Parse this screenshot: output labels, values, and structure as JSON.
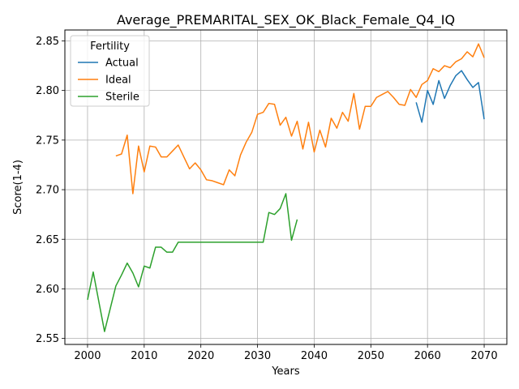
{
  "chart_data": {
    "type": "line",
    "title": "Average_PREMARITAL_SEX_OK_Black_Female_Q4_IQ",
    "xlabel": "Years",
    "ylabel": "Score(1-4)",
    "xlim": [
      1996,
      2074
    ],
    "ylim": [
      2.544,
      2.861
    ],
    "xticks": [
      2000,
      2010,
      2020,
      2030,
      2040,
      2050,
      2060,
      2070
    ],
    "yticks": [
      2.55,
      2.6,
      2.65,
      2.7,
      2.75,
      2.8,
      2.85
    ],
    "xtick_labels": [
      "2000",
      "2010",
      "2020",
      "2030",
      "2040",
      "2050",
      "2060",
      "2070"
    ],
    "ytick_labels": [
      "2.55",
      "2.60",
      "2.65",
      "2.70",
      "2.75",
      "2.80",
      "2.85"
    ],
    "grid": true,
    "legend": {
      "title": "Fertility",
      "placement": "top-left"
    },
    "series": [
      {
        "name": "Actual",
        "color": "#1f77b4",
        "x": [
          2058,
          2059,
          2060,
          2061,
          2062,
          2063,
          2064,
          2065,
          2066,
          2067,
          2068,
          2069,
          2070
        ],
        "y": [
          2.788,
          2.768,
          2.8,
          2.786,
          2.81,
          2.792,
          2.805,
          2.815,
          2.82,
          2.811,
          2.803,
          2.808,
          2.771
        ]
      },
      {
        "name": "Ideal",
        "color": "#ff7f0e",
        "x": [
          2005,
          2006,
          2007,
          2008,
          2009,
          2010,
          2011,
          2012,
          2013,
          2014,
          2015,
          2016,
          2017,
          2018,
          2019,
          2020,
          2021,
          2022,
          2023,
          2024,
          2025,
          2026,
          2027,
          2028,
          2029,
          2030,
          2031,
          2032,
          2033,
          2034,
          2035,
          2036,
          2037,
          2038,
          2039,
          2040,
          2041,
          2042,
          2043,
          2044,
          2045,
          2046,
          2047,
          2048,
          2049,
          2050,
          2051,
          2052,
          2053,
          2054,
          2055,
          2056,
          2057,
          2058,
          2059,
          2060,
          2061,
          2062,
          2063,
          2064,
          2065,
          2066,
          2067,
          2068,
          2069,
          2070
        ],
        "y": [
          2.734,
          2.736,
          2.755,
          2.696,
          2.744,
          2.718,
          2.744,
          2.743,
          2.733,
          2.733,
          2.739,
          2.745,
          2.733,
          2.721,
          2.727,
          2.72,
          2.71,
          2.709,
          2.707,
          2.705,
          2.72,
          2.714,
          2.735,
          2.748,
          2.758,
          2.776,
          2.778,
          2.787,
          2.786,
          2.765,
          2.773,
          2.754,
          2.769,
          2.741,
          2.768,
          2.738,
          2.76,
          2.743,
          2.772,
          2.762,
          2.778,
          2.769,
          2.797,
          2.761,
          2.784,
          2.784,
          2.793,
          2.796,
          2.799,
          2.793,
          2.786,
          2.785,
          2.801,
          2.793,
          2.806,
          2.81,
          2.822,
          2.819,
          2.825,
          2.823,
          2.829,
          2.832,
          2.839,
          2.834,
          2.847,
          2.833
        ]
      },
      {
        "name": "Sterile",
        "color": "#2ca02c",
        "x": [
          2000,
          2001,
          2002,
          2003,
          2004,
          2005,
          2006,
          2007,
          2008,
          2009,
          2010,
          2011,
          2012,
          2013,
          2014,
          2015,
          2016,
          2017,
          2018,
          2019,
          2020,
          2021,
          2022,
          2023,
          2024,
          2025,
          2026,
          2027,
          2028,
          2029,
          2030,
          2031,
          2032,
          2033,
          2034,
          2035,
          2036,
          2037
        ],
        "y": [
          2.589,
          2.617,
          2.587,
          2.557,
          2.58,
          2.603,
          2.614,
          2.626,
          2.616,
          2.602,
          2.623,
          2.621,
          2.642,
          2.642,
          2.637,
          2.637,
          2.647,
          2.647,
          2.647,
          2.647,
          2.647,
          2.647,
          2.647,
          2.647,
          2.647,
          2.647,
          2.647,
          2.647,
          2.647,
          2.647,
          2.647,
          2.647,
          2.677,
          2.675,
          2.681,
          2.696,
          2.649,
          2.67
        ]
      }
    ]
  }
}
